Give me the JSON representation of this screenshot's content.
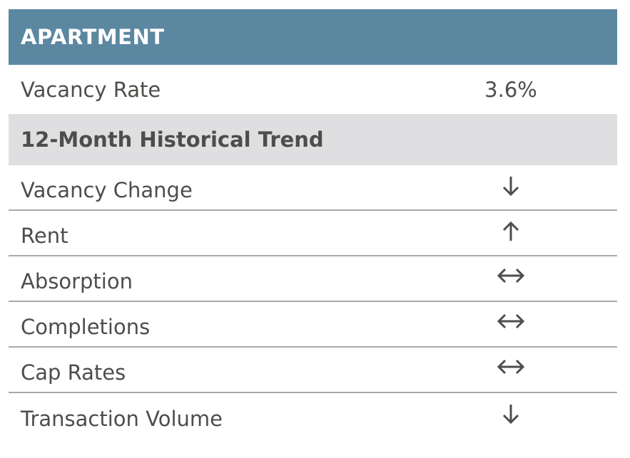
{
  "header": {
    "title": "APARTMENT"
  },
  "vacancy": {
    "label": "Vacancy Rate",
    "value": "3.6%"
  },
  "section": {
    "title": "12-Month Historical Trend"
  },
  "trends": [
    {
      "label": "Vacancy Change",
      "arrow": "down-arrow-icon"
    },
    {
      "label": "Rent",
      "arrow": "up-arrow-icon"
    },
    {
      "label": "Absorption",
      "arrow": "left-right-arrow-icon"
    },
    {
      "label": "Completions",
      "arrow": "left-right-arrow-icon"
    },
    {
      "label": "Cap Rates",
      "arrow": "left-right-arrow-icon"
    },
    {
      "label": "Transaction Volume",
      "arrow": "down-arrow-icon"
    }
  ],
  "colors": {
    "header_bg": "#5b87a1",
    "section_bg": "#dfdfe1",
    "text": "#4d4d4a",
    "divider": "#a9a9a9"
  }
}
